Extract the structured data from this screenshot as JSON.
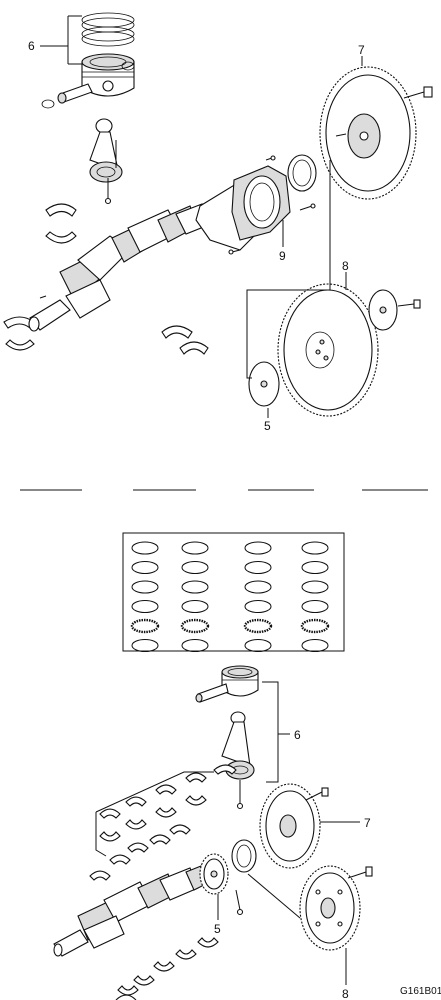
{
  "upper_callouts": [
    {
      "id": "u6",
      "label": "6"
    },
    {
      "id": "u7",
      "label": "7"
    },
    {
      "id": "u9",
      "label": "9"
    },
    {
      "id": "u8",
      "label": "8"
    },
    {
      "id": "u5",
      "label": "5"
    }
  ],
  "lower_callouts": [
    {
      "id": "l6",
      "label": "6"
    },
    {
      "id": "l7",
      "label": "7"
    },
    {
      "id": "l5",
      "label": "5"
    },
    {
      "id": "l8",
      "label": "8"
    }
  ],
  "figure_code": "G161B01",
  "separator_count": 4,
  "ring_grid": {
    "columns": 4,
    "rows": 6
  }
}
